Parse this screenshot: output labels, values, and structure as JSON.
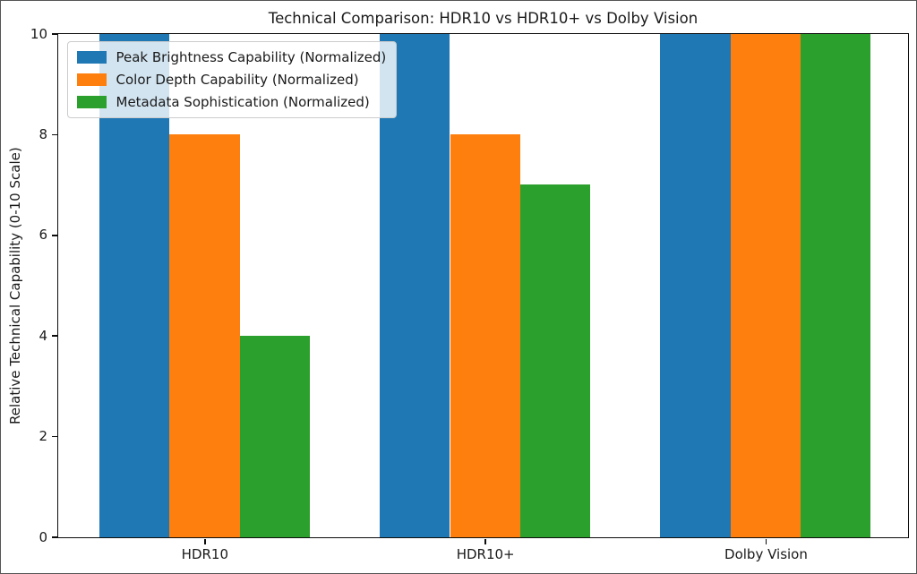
{
  "chart_data": {
    "type": "bar",
    "title": "Technical Comparison: HDR10 vs HDR10+ vs Dolby Vision",
    "xlabel": "",
    "ylabel": "Relative Technical Capability (0-10 Scale)",
    "categories": [
      "HDR10",
      "HDR10+",
      "Dolby Vision"
    ],
    "series": [
      {
        "name": "Peak Brightness Capability (Normalized)",
        "color": "#1f77b4",
        "values": [
          10,
          10,
          10
        ]
      },
      {
        "name": "Color Depth Capability (Normalized)",
        "color": "#ff7f0e",
        "values": [
          8,
          8,
          10
        ]
      },
      {
        "name": "Metadata Sophistication (Normalized)",
        "color": "#2ca02c",
        "values": [
          4,
          7,
          10
        ]
      }
    ],
    "ylim": [
      0,
      10
    ],
    "yticks": [
      0,
      2,
      4,
      6,
      8,
      10
    ],
    "xlim": [
      -0.523,
      2.506
    ],
    "group_positions": [
      0,
      1,
      2
    ],
    "bar_width": 0.25,
    "legend_position": "upper left",
    "grid": false,
    "background_color": "#ffffff"
  }
}
